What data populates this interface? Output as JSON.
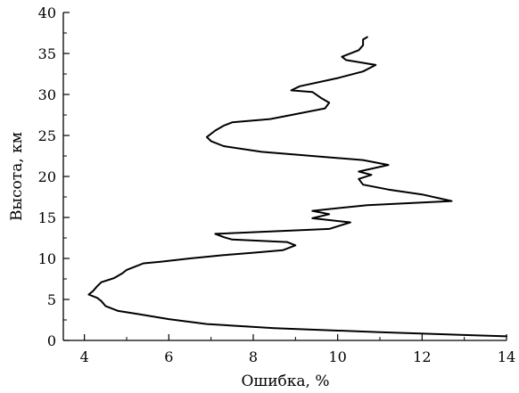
{
  "chart_data": {
    "type": "line",
    "title": "",
    "xlabel": "Ошибка, %",
    "ylabel": "Высота, км",
    "xlim": [
      3.5,
      14
    ],
    "ylim": [
      0,
      40
    ],
    "x_ticks": [
      4,
      6,
      8,
      10,
      12,
      14
    ],
    "y_ticks": [
      0,
      5,
      10,
      15,
      20,
      25,
      30,
      35,
      40
    ],
    "grid": false,
    "legend": "none",
    "series": [
      {
        "color": "#000000",
        "points": [
          [
            14.0,
            0.5
          ],
          [
            11.0,
            1.0
          ],
          [
            8.5,
            1.5
          ],
          [
            6.9,
            2.0
          ],
          [
            6.0,
            2.6
          ],
          [
            5.3,
            3.2
          ],
          [
            4.8,
            3.6
          ],
          [
            4.5,
            4.2
          ],
          [
            4.4,
            4.8
          ],
          [
            4.3,
            5.2
          ],
          [
            4.1,
            5.6
          ],
          [
            4.2,
            6.0
          ],
          [
            4.3,
            6.6
          ],
          [
            4.4,
            7.1
          ],
          [
            4.7,
            7.6
          ],
          [
            4.9,
            8.2
          ],
          [
            5.0,
            8.6
          ],
          [
            5.2,
            9.0
          ],
          [
            5.4,
            9.4
          ],
          [
            5.8,
            9.6
          ],
          [
            6.5,
            10.0
          ],
          [
            7.3,
            10.4
          ],
          [
            8.0,
            10.7
          ],
          [
            8.7,
            11.0
          ],
          [
            9.0,
            11.6
          ],
          [
            8.8,
            12.0
          ],
          [
            7.5,
            12.3
          ],
          [
            7.3,
            12.6
          ],
          [
            7.1,
            13.0
          ],
          [
            9.8,
            13.6
          ],
          [
            10.3,
            14.4
          ],
          [
            9.4,
            14.9
          ],
          [
            9.8,
            15.4
          ],
          [
            9.4,
            15.8
          ],
          [
            10.7,
            16.5
          ],
          [
            12.7,
            17.0
          ],
          [
            12.0,
            17.8
          ],
          [
            11.2,
            18.4
          ],
          [
            10.6,
            19.0
          ],
          [
            10.5,
            19.7
          ],
          [
            10.8,
            20.2
          ],
          [
            10.5,
            20.6
          ],
          [
            11.2,
            21.4
          ],
          [
            10.6,
            22.0
          ],
          [
            8.2,
            23.0
          ],
          [
            7.3,
            23.7
          ],
          [
            7.0,
            24.3
          ],
          [
            6.9,
            24.8
          ],
          [
            7.1,
            25.6
          ],
          [
            7.3,
            26.2
          ],
          [
            7.5,
            26.6
          ],
          [
            8.4,
            27.0
          ],
          [
            9.0,
            27.6
          ],
          [
            9.7,
            28.3
          ],
          [
            9.8,
            29.0
          ],
          [
            9.6,
            29.6
          ],
          [
            9.4,
            30.3
          ],
          [
            8.9,
            30.5
          ],
          [
            9.1,
            31.0
          ],
          [
            10.0,
            32.0
          ],
          [
            10.6,
            32.8
          ],
          [
            10.9,
            33.6
          ],
          [
            10.2,
            34.2
          ],
          [
            10.1,
            34.6
          ],
          [
            10.5,
            35.4
          ],
          [
            10.6,
            36.0
          ],
          [
            10.6,
            36.7
          ],
          [
            10.7,
            37.0
          ]
        ]
      }
    ]
  }
}
